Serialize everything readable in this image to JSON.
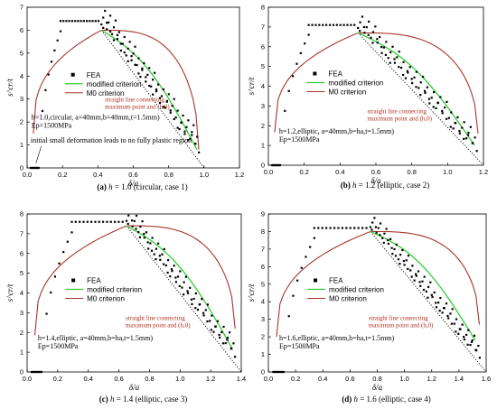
{
  "chart_data": [
    {
      "type": "scatter",
      "caption": [
        "(a)",
        " h ",
        "= 1.0 (circular, case 1)"
      ],
      "xlabel": "δ/a",
      "ylabel": "s^cr/t",
      "xlim": [
        0,
        1.2
      ],
      "ylim": [
        0,
        7
      ],
      "xticks": [
        "0.0",
        "0.2",
        "0.4",
        "0.6",
        "0.8",
        "1.0",
        "1.2"
      ],
      "yticks": [
        "0",
        "1",
        "2",
        "3",
        "4",
        "5",
        "6",
        "7"
      ],
      "legend": [
        "FEA",
        "modified criterion",
        "M0 criterion"
      ],
      "annotation_red": [
        "straight line connecting",
        "maximum point and (h,0)"
      ],
      "annotation": [
        "h=1.0,circular, a=40mm,b=40mm,t=1.5mm)",
        "Ep=1500MPa"
      ],
      "note": "initial small deformation leads to no fully plastic region",
      "peak": [
        0.42,
        6.0
      ],
      "end": 1.0,
      "modified_end": [
        0.96,
        0.8
      ],
      "m0_end": [
        0.97,
        0.8
      ],
      "fea_plateau": 6.4,
      "fea_start": 0.07
    },
    {
      "type": "scatter",
      "caption": [
        "(b)",
        " h ",
        "= 1.2 (elliptic, case 2)"
      ],
      "xlabel": "δ/a",
      "ylabel": "s^cr/t",
      "xlim": [
        0,
        1.2
      ],
      "ylim": [
        0,
        8
      ],
      "xticks": [
        "0.0",
        "0.2",
        "0.4",
        "0.6",
        "0.8",
        "1.0",
        "1.2"
      ],
      "yticks": [
        "0",
        "1",
        "2",
        "3",
        "4",
        "5",
        "6",
        "7",
        "8"
      ],
      "legend": [
        "FEA",
        "modified criterion",
        "M0 criterion"
      ],
      "annotation_red": [
        "straight line connecting",
        "maximum point and (h,0)"
      ],
      "annotation": [
        "h=1.2,elliptic, a=40mm,b=ha,t=1.5mm)",
        "Ep=1500MPa"
      ],
      "peak": [
        0.5,
        6.7
      ],
      "end": 1.2,
      "modified_end": [
        1.15,
        1.0
      ],
      "m0_end": [
        1.17,
        1.6
      ],
      "fea_plateau": 7.1,
      "fea_start": 0.07
    },
    {
      "type": "scatter",
      "caption": [
        "(c)",
        " h ",
        "= 1.4 (elliptic, case 3)"
      ],
      "xlabel": "δ/a",
      "ylabel": "s^cr/t",
      "xlim": [
        0,
        1.4
      ],
      "ylim": [
        0,
        8
      ],
      "xticks": [
        "0.0",
        "0.2",
        "0.4",
        "0.6",
        "0.8",
        "1.0",
        "1.2",
        "1.4"
      ],
      "yticks": [
        "0",
        "1",
        "2",
        "3",
        "4",
        "5",
        "6",
        "7",
        "8"
      ],
      "legend": [
        "FEA",
        "modified criterion",
        "M0 criterion"
      ],
      "annotation_red": [
        "straight line connecting",
        "maximum point and (h,0)"
      ],
      "annotation": [
        "h=1.4,elliptic, a=40mm,b=ha,t=1.5mm)",
        "Ep=1500MPa"
      ],
      "peak": [
        0.65,
        7.4
      ],
      "end": 1.4,
      "modified_end": [
        1.34,
        1.2
      ],
      "m0_end": [
        1.36,
        2.2
      ],
      "fea_plateau": 7.6,
      "fea_start": 0.1
    },
    {
      "type": "scatter",
      "caption": [
        "(d)",
        " h ",
        "= 1.6 (elliptic, case 4)"
      ],
      "xlabel": "δ/a",
      "ylabel": "s^cr/t",
      "xlim": [
        0,
        1.6
      ],
      "ylim": [
        0,
        9
      ],
      "xticks": [
        "0.0",
        "0.2",
        "0.4",
        "0.6",
        "0.8",
        "1.0",
        "1.2",
        "1.4",
        "1.6"
      ],
      "yticks": [
        "0",
        "1",
        "2",
        "3",
        "4",
        "5",
        "6",
        "7",
        "8",
        "9"
      ],
      "legend": [
        "FEA",
        "modified criterion",
        "M0 criterion"
      ],
      "annotation_red": [
        "straight line connecting",
        "maximum point and (h,0)"
      ],
      "annotation": [
        "h=1.6,elliptic, a=40mm,b=ha,t=1.5mm)",
        "Ep=1500MPa"
      ],
      "peak": [
        0.75,
        8.0
      ],
      "end": 1.6,
      "modified_end": [
        1.52,
        1.8
      ],
      "m0_end": [
        1.55,
        2.7
      ],
      "fea_plateau": 8.2,
      "fea_start": 0.12
    }
  ]
}
